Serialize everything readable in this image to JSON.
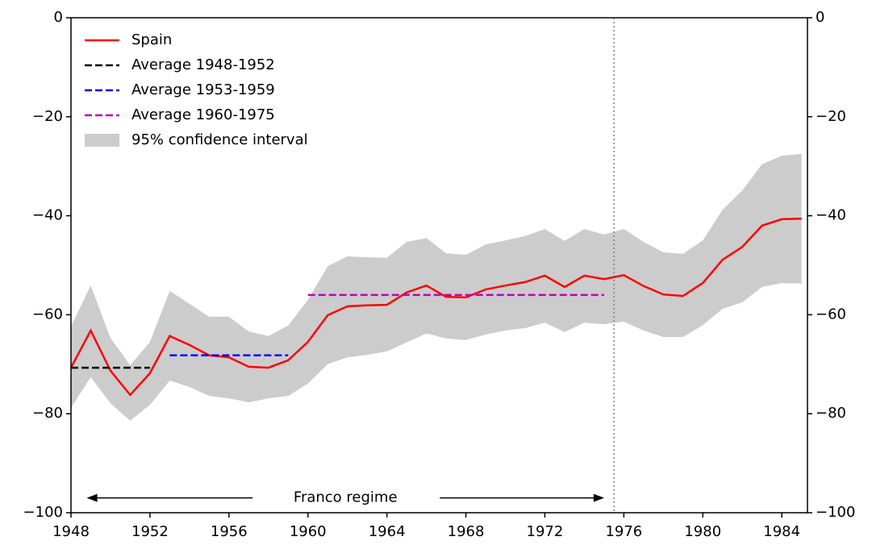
{
  "chart_data": {
    "type": "line",
    "x": [
      1948,
      1949,
      1950,
      1951,
      1952,
      1953,
      1954,
      1955,
      1956,
      1957,
      1958,
      1959,
      1960,
      1961,
      1962,
      1963,
      1964,
      1965,
      1966,
      1967,
      1968,
      1969,
      1970,
      1971,
      1972,
      1973,
      1974,
      1975,
      1976,
      1977,
      1978,
      1979,
      1980,
      1981,
      1982,
      1983,
      1984,
      1985
    ],
    "series": [
      {
        "name": "Spain",
        "color": "#ff0000",
        "style": "solid",
        "values": [
          -70.7,
          -63.2,
          -71.3,
          -76.2,
          -71.8,
          -64.3,
          -66.1,
          -68.2,
          -68.6,
          -70.5,
          -70.7,
          -69.2,
          -65.5,
          -60.1,
          -58.3,
          -58.1,
          -58.0,
          -55.5,
          -54.1,
          -56.4,
          -56.5,
          -54.9,
          -54.1,
          -53.4,
          -52.1,
          -54.4,
          -52.1,
          -52.8,
          -52.0,
          -54.2,
          -55.9,
          -56.2,
          -53.6,
          -48.9,
          -46.3,
          -42.0,
          -40.7,
          -40.6
        ]
      },
      {
        "name": "Average 1948-1952",
        "color": "#000000",
        "style": "dashed",
        "x": [
          1948,
          1952
        ],
        "values": [
          -70.7,
          -70.7
        ]
      },
      {
        "name": "Average 1953-1959",
        "color": "#0000ff",
        "style": "dashed",
        "x": [
          1953,
          1959
        ],
        "values": [
          -68.2,
          -68.2
        ]
      },
      {
        "name": "Average 1960-1975",
        "color": "#bf00bf",
        "style": "dashed",
        "x": [
          1960,
          1975
        ],
        "values": [
          -56.0,
          -56.0
        ]
      }
    ],
    "ci": {
      "name": "95% confidence interval",
      "color": "#cccccc",
      "upper": [
        -62.4,
        -54.1,
        -64.7,
        -70.2,
        -65.5,
        -55.2,
        -57.8,
        -60.4,
        -60.4,
        -63.4,
        -64.3,
        -62.2,
        -57.0,
        -50.2,
        -48.2,
        -48.4,
        -48.5,
        -45.3,
        -44.5,
        -47.6,
        -47.9,
        -45.8,
        -45.0,
        -44.1,
        -42.7,
        -45.1,
        -42.7,
        -43.8,
        -42.7,
        -45.3,
        -47.4,
        -47.7,
        -45.0,
        -38.8,
        -34.9,
        -29.6,
        -27.9,
        -27.5
      ],
      "lower": [
        -78.8,
        -72.6,
        -77.9,
        -81.4,
        -78.2,
        -73.3,
        -74.6,
        -76.4,
        -76.9,
        -77.7,
        -76.9,
        -76.4,
        -73.9,
        -70.0,
        -68.6,
        -68.1,
        -67.4,
        -65.6,
        -63.8,
        -64.8,
        -65.1,
        -64.0,
        -63.2,
        -62.7,
        -61.6,
        -63.5,
        -61.6,
        -61.9,
        -61.4,
        -63.2,
        -64.5,
        -64.5,
        -62.1,
        -58.8,
        -57.5,
        -54.4,
        -53.6,
        -53.7
      ]
    },
    "vline": {
      "x": 1975.5,
      "color": "#808080"
    },
    "annotation": {
      "text": "Franco regime",
      "x_start": 1948.8,
      "x_end": 1975,
      "y": -97
    },
    "xlim": [
      1948,
      1985.3
    ],
    "xticks": [
      1948,
      1952,
      1956,
      1960,
      1964,
      1968,
      1972,
      1976,
      1980,
      1984
    ],
    "ylim": [
      -100,
      0
    ],
    "yticks": [
      {
        "value": -100,
        "label": "−100"
      },
      {
        "value": -80,
        "label": "−80"
      },
      {
        "value": -60,
        "label": "−60"
      },
      {
        "value": -40,
        "label": "−40"
      },
      {
        "value": -20,
        "label": "−20"
      },
      0
    ],
    "legend": "upper left"
  }
}
